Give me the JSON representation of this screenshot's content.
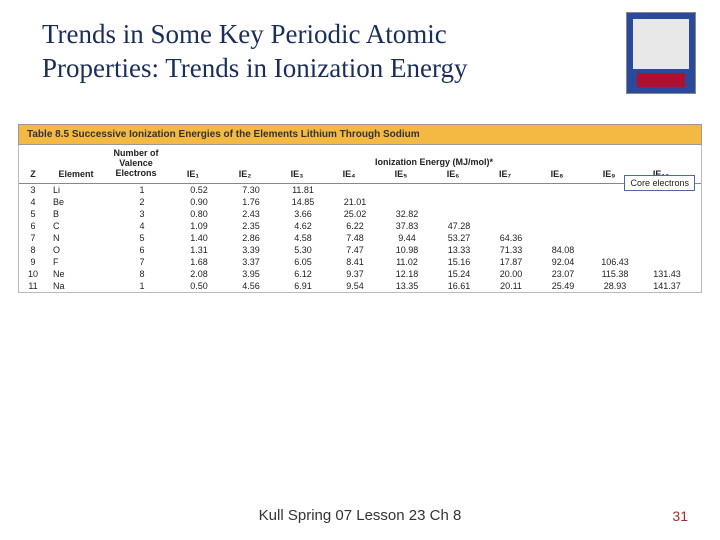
{
  "title_line1": "Trends in Some Key Periodic Atomic",
  "title_line2": "Properties:  Trends in Ionization Energy",
  "footer": "Kull Spring 07 Lesson 23 Ch 8",
  "page_number": "31",
  "table_title": "Table 8.5  Successive Ionization Energies of the Elements Lithium Through Sodium",
  "ion_energy_header": "Ionization Energy (MJ/mol)*",
  "core_electrons_label": "Core electrons",
  "cols": {
    "z": "Z",
    "element": "Element",
    "nvalence_l1": "Number of",
    "nvalence_l2": "Valence",
    "nvalence_l3": "Electrons",
    "ie1": "IE₁",
    "ie2": "IE₂",
    "ie3": "IE₃",
    "ie4": "IE₄",
    "ie5": "IE₅",
    "ie6": "IE₆",
    "ie7": "IE₇",
    "ie8": "IE₈",
    "ie9": "IE₉",
    "ie10": "IE₁₀"
  },
  "rows": [
    {
      "z": "3",
      "el": "Li",
      "nv": "1",
      "ie": [
        "0.52",
        "7.30",
        "11.81",
        "",
        "",
        "",
        "",
        "",
        "",
        ""
      ]
    },
    {
      "z": "4",
      "el": "Be",
      "nv": "2",
      "ie": [
        "0.90",
        "1.76",
        "14.85",
        "21.01",
        "",
        "",
        "",
        "",
        "",
        ""
      ]
    },
    {
      "z": "5",
      "el": "B",
      "nv": "3",
      "ie": [
        "0.80",
        "2.43",
        "3.66",
        "25.02",
        "32.82",
        "",
        "",
        "",
        "",
        ""
      ]
    },
    {
      "z": "6",
      "el": "C",
      "nv": "4",
      "ie": [
        "1.09",
        "2.35",
        "4.62",
        "6.22",
        "37.83",
        "47.28",
        "",
        "",
        "",
        ""
      ]
    },
    {
      "z": "7",
      "el": "N",
      "nv": "5",
      "ie": [
        "1.40",
        "2.86",
        "4.58",
        "7.48",
        "9.44",
        "53.27",
        "64.36",
        "",
        "",
        ""
      ]
    },
    {
      "z": "8",
      "el": "O",
      "nv": "6",
      "ie": [
        "1.31",
        "3.39",
        "5.30",
        "7.47",
        "10.98",
        "13.33",
        "71.33",
        "84.08",
        "",
        ""
      ]
    },
    {
      "z": "9",
      "el": "F",
      "nv": "7",
      "ie": [
        "1.68",
        "3.37",
        "6.05",
        "8.41",
        "11.02",
        "15.16",
        "17.87",
        "92.04",
        "106.43",
        ""
      ]
    },
    {
      "z": "10",
      "el": "Ne",
      "nv": "8",
      "ie": [
        "2.08",
        "3.95",
        "6.12",
        "9.37",
        "12.18",
        "15.24",
        "20.00",
        "23.07",
        "115.38",
        "131.43"
      ]
    },
    {
      "z": "11",
      "el": "Na",
      "nv": "1",
      "ie": [
        "0.50",
        "4.56",
        "6.91",
        "9.54",
        "13.35",
        "16.61",
        "20.11",
        "25.49",
        "28.93",
        "141.37"
      ]
    }
  ]
}
